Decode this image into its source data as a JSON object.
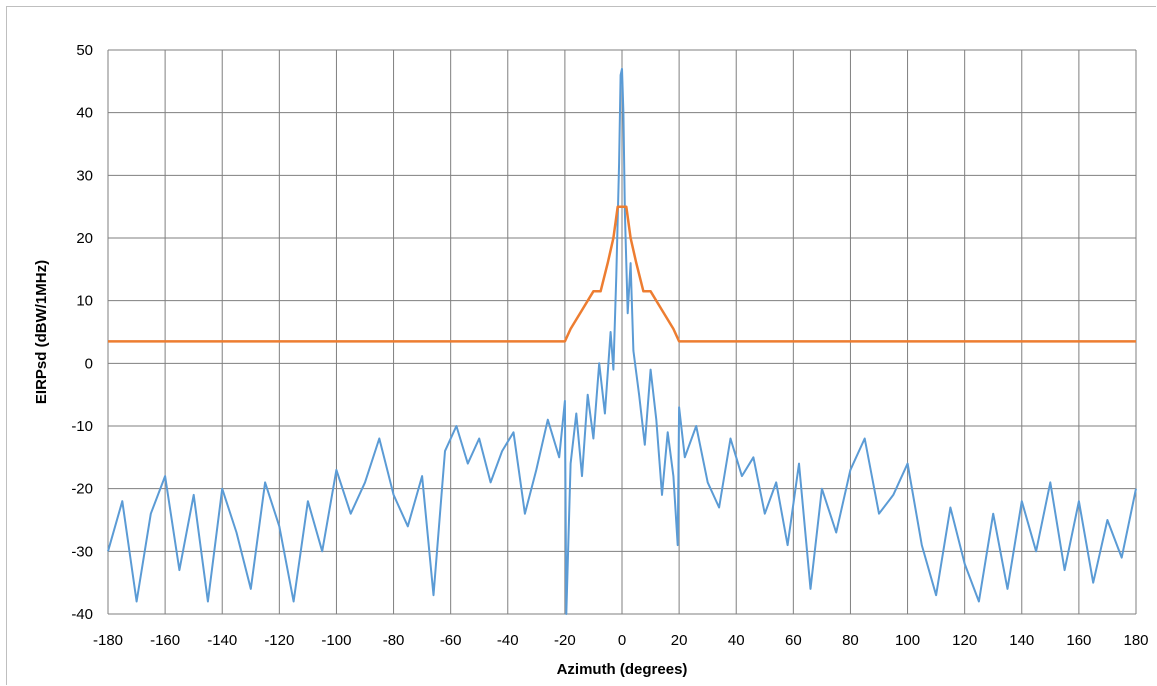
{
  "chart_data": {
    "type": "line",
    "title": "",
    "xlabel": "Azimuth (degrees)",
    "ylabel": "EIRPsd (dBW/1MHz)",
    "xlim": [
      -180,
      180
    ],
    "ylim": [
      -40,
      50
    ],
    "xticks": [
      -180,
      -160,
      -140,
      -120,
      -100,
      -80,
      -60,
      -40,
      -20,
      0,
      20,
      40,
      60,
      80,
      100,
      120,
      140,
      160,
      180
    ],
    "yticks": [
      -40,
      -30,
      -20,
      -10,
      0,
      10,
      20,
      30,
      40,
      50
    ],
    "grid": true,
    "legend": "none",
    "colors": {
      "measured": "#5b9bd5",
      "mask": "#ed7d31",
      "grid": "#7f7f7f"
    },
    "series": [
      {
        "label": "orange mask",
        "color": "#ed7d31",
        "x": [
          -180,
          -20,
          -18,
          -14,
          -10,
          -7.5,
          -5,
          -3,
          -1.5,
          0,
          1.5,
          3,
          5,
          7.5,
          10,
          14,
          18,
          20,
          180
        ],
        "y": [
          3.5,
          3.5,
          5.5,
          8.5,
          11.5,
          11.5,
          16,
          20,
          25,
          25,
          25,
          20,
          16,
          11.5,
          11.5,
          8.5,
          5.5,
          3.5,
          3.5
        ]
      },
      {
        "label": "blue measured",
        "color": "#5b9bd5",
        "x": [
          -180,
          -175,
          -170,
          -165,
          -160,
          -155,
          -150,
          -145,
          -140,
          -135,
          -130,
          -125,
          -120,
          -115,
          -110,
          -105,
          -100,
          -95,
          -90,
          -85,
          -80,
          -75,
          -70,
          -66,
          -62,
          -58,
          -54,
          -50,
          -46,
          -42,
          -38,
          -34,
          -30,
          -26,
          -22,
          -20,
          -19.5,
          -18,
          -16,
          -14,
          -12,
          -10,
          -8,
          -6,
          -4,
          -3,
          -2,
          -1,
          -0.5,
          0,
          0.5,
          1,
          2,
          3,
          4,
          6,
          8,
          10,
          12,
          14,
          16,
          18,
          19.5,
          20,
          22,
          26,
          30,
          34,
          38,
          42,
          46,
          50,
          54,
          58,
          62,
          66,
          70,
          75,
          80,
          85,
          90,
          95,
          100,
          105,
          110,
          115,
          120,
          125,
          130,
          135,
          140,
          145,
          150,
          155,
          160,
          165,
          170,
          175,
          180
        ],
        "y": [
          -30,
          -22,
          -38,
          -24,
          -18,
          -33,
          -21,
          -38,
          -20,
          -27,
          -36,
          -19,
          -26,
          -38,
          -22,
          -30,
          -17,
          -24,
          -19,
          -12,
          -21,
          -26,
          -18,
          -37,
          -14,
          -10,
          -16,
          -12,
          -19,
          -14,
          -11,
          -24,
          -17,
          -9,
          -15,
          -6,
          -40,
          -16,
          -8,
          -18,
          -5,
          -12,
          0,
          -8,
          5,
          -1,
          14,
          32,
          46,
          47,
          40,
          24,
          8,
          16,
          2,
          -5,
          -13,
          -1,
          -9,
          -21,
          -11,
          -18,
          -29,
          -7,
          -15,
          -10,
          -19,
          -23,
          -12,
          -18,
          -15,
          -24,
          -19,
          -29,
          -16,
          -36,
          -20,
          -27,
          -17,
          -12,
          -24,
          -21,
          -16,
          -29,
          -37,
          -23,
          -32,
          -38,
          -24,
          -36,
          -22,
          -30,
          -19,
          -33,
          -22,
          -35,
          -25,
          -31,
          -20
        ]
      }
    ]
  }
}
